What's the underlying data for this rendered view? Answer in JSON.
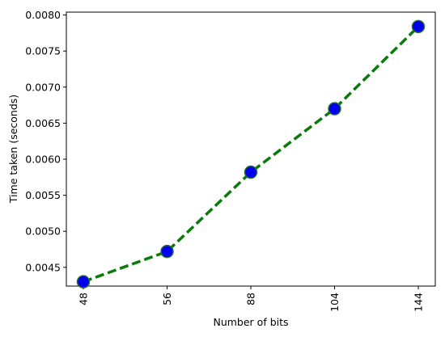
{
  "chart_data": {
    "type": "line",
    "title": "",
    "xlabel": "Number of bits",
    "ylabel": "Time taken (seconds)",
    "categories": [
      "48",
      "56",
      "88",
      "104",
      "144"
    ],
    "series": [
      {
        "values": [
          0.0043,
          0.00472,
          0.00582,
          0.0067,
          0.00784
        ]
      }
    ],
    "ylim": [
      0.00424,
      0.00804
    ],
    "yticks": [
      0.0045,
      0.005,
      0.0055,
      0.006,
      0.0065,
      0.007,
      0.0075,
      0.008
    ],
    "ytick_labels": [
      "0.0045",
      "0.0050",
      "0.0055",
      "0.0060",
      "0.0065",
      "0.0070",
      "0.0075",
      "0.0080"
    ],
    "grid": false,
    "legend": "none",
    "style": {
      "line_color": "#0a7a0a",
      "line_style": "dashed",
      "marker": "circle",
      "marker_fill": "#0000ee",
      "marker_edge": "#2a6e2a"
    }
  }
}
